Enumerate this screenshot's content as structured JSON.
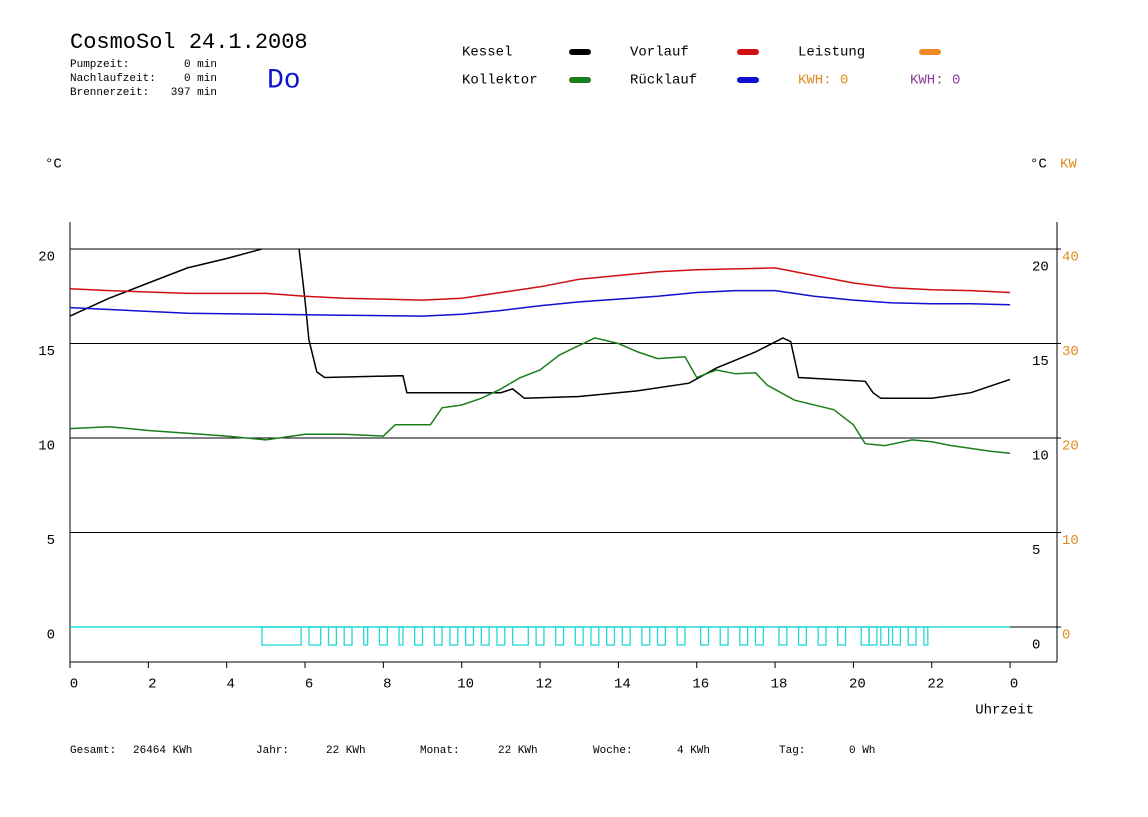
{
  "header": {
    "title": "CosmoSol 24.1.2008",
    "day": "Do",
    "stats": [
      {
        "label": "Pumpzeit:",
        "value": "0 min"
      },
      {
        "label": "Nachlaufzeit:",
        "value": "0 min"
      },
      {
        "label": "Brennerzeit:",
        "value": "397 min"
      }
    ],
    "kwh": [
      {
        "text": "KWH: 0",
        "color": "#e08a1e"
      },
      {
        "text": "KWH: 0",
        "color": "#8a3c9a"
      }
    ]
  },
  "footer": [
    {
      "label": "Gesamt:",
      "value": "26464 KWh"
    },
    {
      "label": "Jahr:",
      "value": "22 KWh"
    },
    {
      "label": "Monat:",
      "value": "22 KWh"
    },
    {
      "label": "Woche:",
      "value": "4 KWh"
    },
    {
      "label": "Tag:",
      "value": "0 Wh"
    }
  ],
  "chart_data": {
    "type": "line",
    "y_unit": "°C",
    "y2_unit": "°C",
    "y2_power_unit": "KW",
    "xlabel": "Uhrzeit",
    "xlim": [
      0,
      25.2
    ],
    "xticks": [
      0,
      2,
      4,
      6,
      8,
      10,
      12,
      14,
      16,
      18,
      20,
      22,
      {
        "value": 24,
        "label": "0"
      }
    ],
    "ylim": [
      -1.85,
      21.43
    ],
    "yticks": [
      0,
      5,
      10,
      15,
      20
    ],
    "y2lim": [
      -3.7,
      42.86
    ],
    "y2ticks": [
      0,
      10,
      20,
      30,
      40
    ],
    "y2color": "#e08a1e",
    "grid": true,
    "series": [
      {
        "name": "Kessel",
        "color": "#000000",
        "x": [
          0,
          1,
          2,
          3,
          4,
          4.9,
          5.3,
          5.85,
          6.0,
          6.1,
          6.3,
          6.5,
          8.5,
          8.6,
          11.0,
          11.3,
          11.6,
          13.0,
          14.5,
          15.8,
          16.5,
          17.5,
          18.2,
          18.4,
          18.6,
          20.3,
          20.5,
          20.7,
          22,
          23,
          24
        ],
        "values": [
          16.45,
          17.4,
          18.2,
          19.0,
          19.5,
          20.0,
          null,
          20.0,
          17.3,
          15.2,
          13.5,
          13.2,
          13.3,
          12.4,
          12.4,
          12.6,
          12.1,
          12.2,
          12.5,
          12.9,
          13.7,
          14.55,
          15.3,
          15.1,
          13.2,
          13.0,
          12.4,
          12.1,
          12.1,
          12.4,
          13.1
        ]
      },
      {
        "name": "Kollektor",
        "color": "#1a7f1a",
        "x": [
          0,
          1,
          2,
          3,
          4,
          5,
          6,
          7,
          8,
          8.3,
          9.2,
          9.5,
          10,
          10.5,
          11,
          11.5,
          12,
          12.5,
          13,
          13.4,
          14,
          14.5,
          15,
          15.7,
          16,
          16.5,
          17,
          17.5,
          17.8,
          18.5,
          19.5,
          20,
          20.3,
          20.8,
          21.5,
          22,
          22.5,
          23,
          23.5,
          24
        ],
        "values": [
          10.5,
          10.6,
          10.4,
          10.25,
          10.1,
          9.9,
          10.2,
          10.2,
          10.1,
          10.7,
          10.7,
          11.6,
          11.75,
          12.1,
          12.6,
          13.2,
          13.6,
          14.4,
          14.9,
          15.3,
          15.0,
          14.55,
          14.2,
          14.3,
          13.2,
          13.6,
          13.4,
          13.45,
          12.8,
          12.0,
          11.5,
          10.7,
          9.7,
          9.6,
          9.9,
          9.8,
          9.6,
          9.45,
          9.3,
          9.2
        ]
      },
      {
        "name": "Vorlauf",
        "color": "#d01010",
        "x": [
          0,
          1,
          3,
          5,
          6,
          7,
          8,
          9,
          10,
          11,
          12,
          13,
          14,
          15,
          16,
          17,
          18,
          19,
          20,
          21,
          22,
          23,
          24
        ],
        "values": [
          17.9,
          17.8,
          17.65,
          17.65,
          17.5,
          17.4,
          17.35,
          17.3,
          17.4,
          17.7,
          18.0,
          18.4,
          18.6,
          18.8,
          18.9,
          18.95,
          19.0,
          18.6,
          18.2,
          17.95,
          17.85,
          17.8,
          17.7
        ]
      },
      {
        "name": "Rücklauf",
        "color": "#1010d0",
        "x": [
          0,
          1,
          3,
          5,
          7,
          9,
          10,
          11,
          12,
          13,
          14,
          15,
          16,
          17,
          18,
          19,
          20,
          21,
          22,
          23,
          24
        ],
        "values": [
          16.9,
          16.8,
          16.6,
          16.55,
          16.5,
          16.45,
          16.55,
          16.75,
          17.0,
          17.2,
          17.35,
          17.5,
          17.7,
          17.8,
          17.8,
          17.5,
          17.3,
          17.15,
          17.1,
          17.1,
          17.05
        ]
      },
      {
        "name": "Leistung",
        "color": "#f08a20",
        "axis": "y2",
        "x": [],
        "values": []
      }
    ],
    "pulse_color": "#20d8d8",
    "pulse_depth": -0.95,
    "pulses": [
      [
        4.9,
        5.9
      ],
      [
        6.1,
        6.4
      ],
      [
        6.6,
        6.8
      ],
      [
        7.0,
        7.2
      ],
      [
        7.5,
        7.6
      ],
      [
        7.9,
        8.1
      ],
      [
        8.4,
        8.5
      ],
      [
        8.8,
        9.0
      ],
      [
        9.3,
        9.5
      ],
      [
        9.7,
        9.9
      ],
      [
        10.1,
        10.3
      ],
      [
        10.5,
        10.7
      ],
      [
        10.9,
        11.1
      ],
      [
        11.3,
        11.7
      ],
      [
        11.9,
        12.1
      ],
      [
        12.4,
        12.6
      ],
      [
        12.9,
        13.1
      ],
      [
        13.3,
        13.5
      ],
      [
        13.7,
        13.9
      ],
      [
        14.1,
        14.3
      ],
      [
        14.6,
        14.8
      ],
      [
        15.0,
        15.2
      ],
      [
        15.5,
        15.7
      ],
      [
        16.1,
        16.3
      ],
      [
        16.6,
        16.8
      ],
      [
        17.1,
        17.3
      ],
      [
        17.5,
        17.7
      ],
      [
        18.1,
        18.3
      ],
      [
        18.6,
        18.8
      ],
      [
        19.1,
        19.3
      ],
      [
        19.6,
        19.8
      ],
      [
        20.2,
        20.4
      ],
      [
        20.4,
        20.6
      ],
      [
        20.7,
        20.9
      ],
      [
        21.0,
        21.2
      ],
      [
        21.4,
        21.6
      ],
      [
        21.8,
        21.9
      ]
    ]
  }
}
